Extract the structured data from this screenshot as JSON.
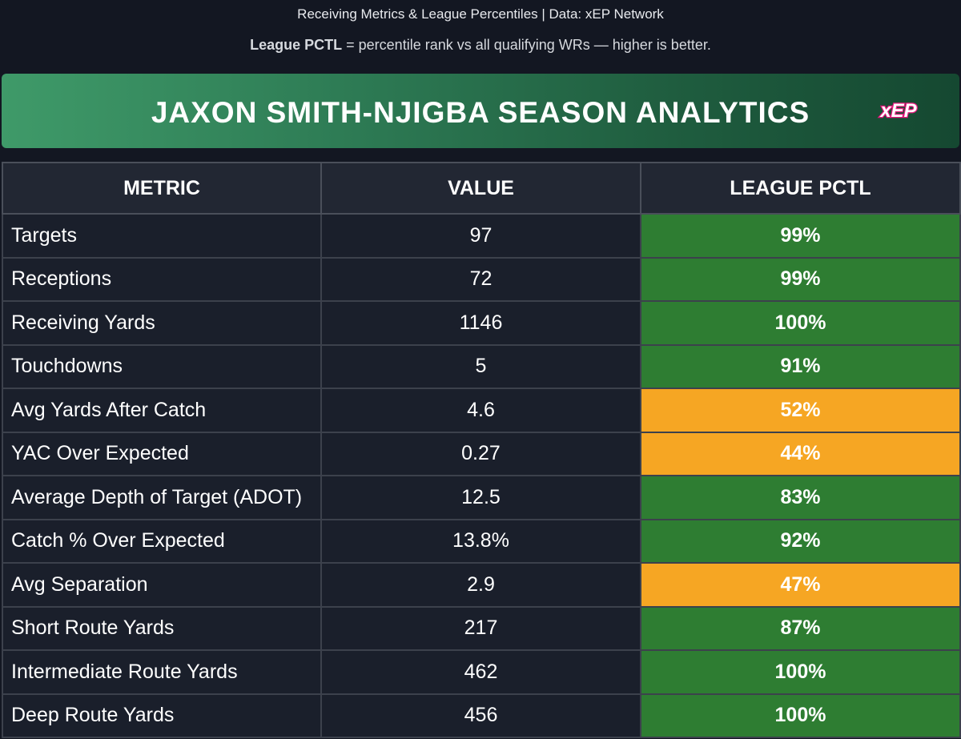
{
  "header": {
    "source_line": "Receiving Metrics & League Percentiles | Data: xEP Network",
    "legend_key": "League PCTL",
    "legend_text": " = percentile rank vs all qualifying WRs — higher is better."
  },
  "banner": {
    "title": "JAXON SMITH-NJIGBA SEASON ANALYTICS",
    "logo_text": "xEP",
    "gradient_start": "#3f9a69",
    "gradient_end": "#154831"
  },
  "table": {
    "columns": [
      "METRIC",
      "VALUE",
      "LEAGUE PCTL"
    ],
    "rows": [
      {
        "metric": "Targets",
        "value": "97",
        "pctl": "99%",
        "tier": "green"
      },
      {
        "metric": "Receptions",
        "value": "72",
        "pctl": "99%",
        "tier": "green"
      },
      {
        "metric": "Receiving Yards",
        "value": "1146",
        "pctl": "100%",
        "tier": "green"
      },
      {
        "metric": "Touchdowns",
        "value": "5",
        "pctl": "91%",
        "tier": "green"
      },
      {
        "metric": "Avg Yards After Catch",
        "value": "4.6",
        "pctl": "52%",
        "tier": "orange"
      },
      {
        "metric": "YAC Over Expected",
        "value": "0.27",
        "pctl": "44%",
        "tier": "orange"
      },
      {
        "metric": "Average Depth of Target (ADOT)",
        "value": "12.5",
        "pctl": "83%",
        "tier": "green"
      },
      {
        "metric": "Catch % Over Expected",
        "value": "13.8%",
        "pctl": "92%",
        "tier": "green"
      },
      {
        "metric": "Avg Separation",
        "value": "2.9",
        "pctl": "47%",
        "tier": "orange"
      },
      {
        "metric": "Short Route Yards",
        "value": "217",
        "pctl": "87%",
        "tier": "green"
      },
      {
        "metric": "Intermediate Route Yards",
        "value": "462",
        "pctl": "100%",
        "tier": "green"
      },
      {
        "metric": "Deep Route Yards",
        "value": "456",
        "pctl": "100%",
        "tier": "green"
      }
    ]
  },
  "colors": {
    "background": "#131722",
    "green": "#2e7d32",
    "orange": "#f6a623",
    "logo_pink": "#e8177d"
  }
}
